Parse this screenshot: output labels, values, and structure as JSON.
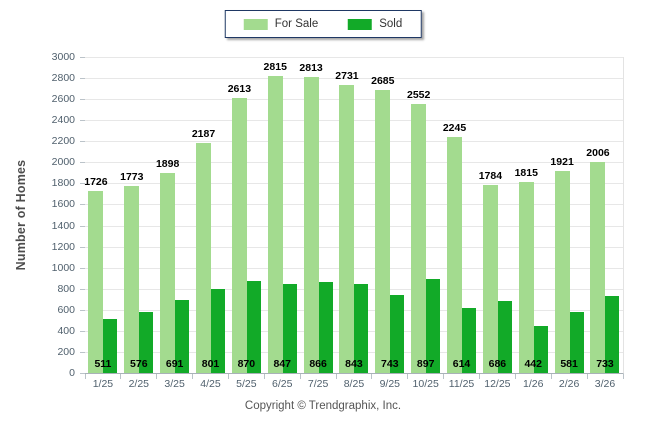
{
  "legend": {
    "items": [
      {
        "label": "For Sale",
        "color": "#A3DB8F"
      },
      {
        "label": "Sold",
        "color": "#12AA28"
      }
    ]
  },
  "footer": {
    "copyright": "Copyright © Trendgraphix, Inc."
  },
  "colors": {
    "for_sale": "#A3DB8F",
    "sold": "#12AA28",
    "gridline": "#E7E7E7",
    "baseline": "#A9B2B8",
    "axis_text": "#50606D",
    "legend_border": "#1F3864"
  },
  "chart_data": {
    "type": "bar",
    "title": "",
    "categories": [
      "1/25",
      "2/25",
      "3/25",
      "4/25",
      "5/25",
      "6/25",
      "7/25",
      "8/25",
      "9/25",
      "10/25",
      "11/25",
      "12/25",
      "1/26",
      "2/26",
      "3/26"
    ],
    "series": [
      {
        "name": "For Sale",
        "color": "#A3DB8F",
        "values": [
          1726,
          1773,
          1898,
          2187,
          2613,
          2815,
          2813,
          2731,
          2685,
          2552,
          2245,
          1784,
          1815,
          1921,
          2006
        ]
      },
      {
        "name": "Sold",
        "color": "#12AA28",
        "values": [
          511,
          576,
          691,
          801,
          870,
          847,
          866,
          843,
          743,
          897,
          614,
          686,
          442,
          581,
          733
        ]
      }
    ],
    "xlabel": "",
    "ylabel": "Number of Homes",
    "ylim": [
      0,
      3000
    ],
    "y_step": 200,
    "grid": true,
    "legend_position": "top-center",
    "value_labels": {
      "for_sale": "above bars",
      "sold": "at bar base"
    }
  }
}
